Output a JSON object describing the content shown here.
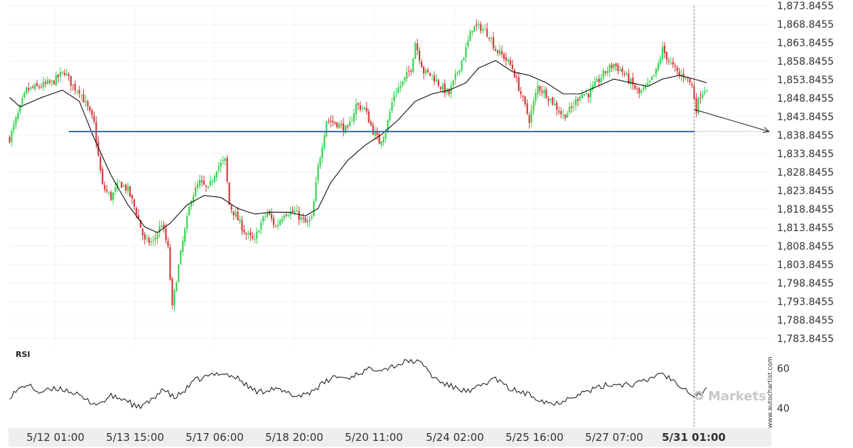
{
  "chart_data": {
    "type": "candlestick",
    "y_tick_labels": [
      "1,873.8455",
      "1,868.8455",
      "1,863.8455",
      "1,858.8455",
      "1,853.8455",
      "1,848.8455",
      "1,843.8455",
      "1,838.8455",
      "1,833.8455",
      "1,828.8455",
      "1,823.8455",
      "1,818.8455",
      "1,813.8455",
      "1,808.8455",
      "1,803.8455",
      "1,798.8455",
      "1,793.8455",
      "1,788.8455",
      "1,783.8455"
    ],
    "ylim": [
      1783.8455,
      1873.8455
    ],
    "x_tick_labels": [
      "5/12 01:00",
      "5/13 15:00",
      "5/17 06:00",
      "5/18 20:00",
      "5/20 11:00",
      "5/24 02:00",
      "5/25 16:00",
      "5/27 07:00",
      "5/31 01:00"
    ],
    "highlighted_x_tick": "5/31 01:00",
    "support_level": 1839.8,
    "close_path": [
      [
        0,
        1838
      ],
      [
        8,
        1851
      ],
      [
        14,
        1852
      ],
      [
        20,
        1853
      ],
      [
        26,
        1856
      ],
      [
        30,
        1852
      ],
      [
        33,
        1851
      ],
      [
        37,
        1846
      ],
      [
        40,
        1842
      ],
      [
        42,
        1833
      ],
      [
        44,
        1825
      ],
      [
        48,
        1822
      ],
      [
        52,
        1826
      ],
      [
        56,
        1824
      ],
      [
        60,
        1818
      ],
      [
        64,
        1810
      ],
      [
        68,
        1810
      ],
      [
        72,
        1815
      ],
      [
        75,
        1808
      ],
      [
        77,
        1792
      ],
      [
        79,
        1800
      ],
      [
        82,
        1810
      ],
      [
        86,
        1822
      ],
      [
        90,
        1826
      ],
      [
        94,
        1824
      ],
      [
        98,
        1830
      ],
      [
        102,
        1832
      ],
      [
        104,
        1820
      ],
      [
        108,
        1816
      ],
      [
        112,
        1812
      ],
      [
        116,
        1810
      ],
      [
        118,
        1814
      ],
      [
        122,
        1818
      ],
      [
        126,
        1814
      ],
      [
        130,
        1818
      ],
      [
        135,
        1818
      ],
      [
        140,
        1815
      ],
      [
        143,
        1816
      ],
      [
        146,
        1830
      ],
      [
        150,
        1843
      ],
      [
        155,
        1842
      ],
      [
        160,
        1840
      ],
      [
        164,
        1847
      ],
      [
        168,
        1846
      ],
      [
        172,
        1840
      ],
      [
        175,
        1837
      ],
      [
        178,
        1840
      ],
      [
        182,
        1850
      ],
      [
        186,
        1853
      ],
      [
        190,
        1857
      ],
      [
        192,
        1864
      ],
      [
        196,
        1856
      ],
      [
        200,
        1855
      ],
      [
        204,
        1852
      ],
      [
        208,
        1850
      ],
      [
        212,
        1856
      ],
      [
        216,
        1862
      ],
      [
        219,
        1868
      ],
      [
        223,
        1868
      ],
      [
        227,
        1866
      ],
      [
        230,
        1862
      ],
      [
        234,
        1860
      ],
      [
        238,
        1857
      ],
      [
        242,
        1850
      ],
      [
        246,
        1843
      ],
      [
        250,
        1852
      ],
      [
        254,
        1850
      ],
      [
        258,
        1847
      ],
      [
        262,
        1844
      ],
      [
        266,
        1846
      ],
      [
        270,
        1850
      ],
      [
        274,
        1850
      ],
      [
        278,
        1853
      ],
      [
        282,
        1856
      ],
      [
        286,
        1858
      ],
      [
        290,
        1856
      ],
      [
        294,
        1853
      ],
      [
        298,
        1850
      ],
      [
        302,
        1852
      ],
      [
        306,
        1856
      ],
      [
        309,
        1862
      ],
      [
        313,
        1858
      ],
      [
        317,
        1855
      ],
      [
        320,
        1855
      ],
      [
        323,
        1852
      ],
      [
        325,
        1846
      ],
      [
        327,
        1850
      ],
      [
        330,
        1852
      ]
    ],
    "moving_average": [
      [
        0,
        1849
      ],
      [
        5,
        1846.5
      ],
      [
        15,
        1849
      ],
      [
        25,
        1851
      ],
      [
        33,
        1848
      ],
      [
        40,
        1838
      ],
      [
        48,
        1828
      ],
      [
        56,
        1820
      ],
      [
        64,
        1814
      ],
      [
        70,
        1812.5
      ],
      [
        76,
        1815
      ],
      [
        84,
        1820
      ],
      [
        92,
        1822.5
      ],
      [
        100,
        1822
      ],
      [
        108,
        1819
      ],
      [
        116,
        1817.5
      ],
      [
        124,
        1818
      ],
      [
        132,
        1818
      ],
      [
        140,
        1817
      ],
      [
        146,
        1819
      ],
      [
        152,
        1826
      ],
      [
        160,
        1832
      ],
      [
        168,
        1836
      ],
      [
        176,
        1839
      ],
      [
        184,
        1843
      ],
      [
        192,
        1848
      ],
      [
        200,
        1850
      ],
      [
        208,
        1851
      ],
      [
        216,
        1853
      ],
      [
        222,
        1857
      ],
      [
        230,
        1859
      ],
      [
        238,
        1856
      ],
      [
        246,
        1855
      ],
      [
        254,
        1853
      ],
      [
        262,
        1850
      ],
      [
        270,
        1850
      ],
      [
        278,
        1852
      ],
      [
        286,
        1854
      ],
      [
        294,
        1853
      ],
      [
        302,
        1852
      ],
      [
        309,
        1854
      ],
      [
        317,
        1855
      ],
      [
        324,
        1854
      ],
      [
        330,
        1853
      ]
    ],
    "forecast_arrow": {
      "from": [
        324,
        1845.8
      ],
      "to": [
        361,
        1839.8
      ]
    },
    "rsi": {
      "label": "RSI",
      "tick_labels": [
        "60",
        "40"
      ],
      "ylim": [
        30,
        70
      ],
      "values": [
        [
          0,
          46
        ],
        [
          8,
          52
        ],
        [
          14,
          48
        ],
        [
          24,
          50
        ],
        [
          30,
          48
        ],
        [
          36,
          44
        ],
        [
          42,
          42
        ],
        [
          48,
          46
        ],
        [
          56,
          44
        ],
        [
          60,
          40
        ],
        [
          68,
          44
        ],
        [
          72,
          50
        ],
        [
          78,
          45
        ],
        [
          82,
          48
        ],
        [
          88,
          54
        ],
        [
          94,
          56
        ],
        [
          100,
          58
        ],
        [
          108,
          55
        ],
        [
          114,
          50
        ],
        [
          118,
          48
        ],
        [
          124,
          50
        ],
        [
          130,
          48
        ],
        [
          136,
          46
        ],
        [
          142,
          48
        ],
        [
          148,
          52
        ],
        [
          154,
          56
        ],
        [
          160,
          55
        ],
        [
          166,
          58
        ],
        [
          172,
          60
        ],
        [
          178,
          60
        ],
        [
          184,
          62
        ],
        [
          190,
          64
        ],
        [
          196,
          62
        ],
        [
          200,
          56
        ],
        [
          206,
          52
        ],
        [
          212,
          50
        ],
        [
          218,
          48
        ],
        [
          224,
          52
        ],
        [
          230,
          55
        ],
        [
          236,
          50
        ],
        [
          242,
          48
        ],
        [
          248,
          46
        ],
        [
          252,
          44
        ],
        [
          258,
          42
        ],
        [
          262,
          44
        ],
        [
          266,
          46
        ],
        [
          272,
          48
        ],
        [
          278,
          50
        ],
        [
          284,
          52
        ],
        [
          290,
          52
        ],
        [
          296,
          52
        ],
        [
          302,
          54
        ],
        [
          308,
          58
        ],
        [
          314,
          54
        ],
        [
          320,
          50
        ],
        [
          324,
          46
        ],
        [
          328,
          48
        ],
        [
          330,
          50
        ]
      ]
    },
    "watermark": "Markets",
    "vendor_text": "www.autochartist.com"
  }
}
